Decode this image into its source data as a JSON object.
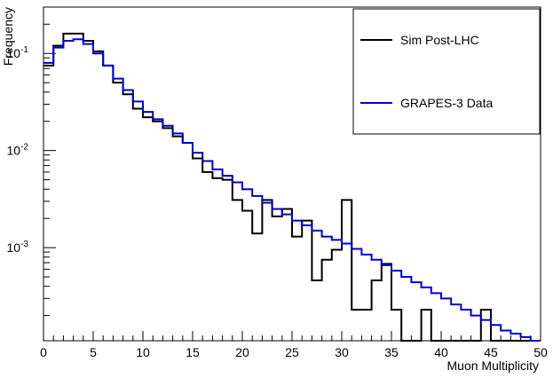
{
  "chart_data": {
    "type": "line",
    "style": "step-histogram",
    "xlabel": "Muon Multiplicity",
    "ylabel": "Frequency",
    "xlim": [
      0,
      50
    ],
    "ylim": [
      0.00011,
      0.3
    ],
    "yscale": "log",
    "bin_width": 1,
    "x_ticks": [
      0,
      5,
      10,
      15,
      20,
      25,
      30,
      35,
      40,
      45,
      50
    ],
    "y_ticks": [
      {
        "value": 0.1,
        "base": "10",
        "exp": "-1"
      },
      {
        "value": 0.01,
        "base": "10",
        "exp": "-2"
      },
      {
        "value": 0.001,
        "base": "10",
        "exp": "-3"
      }
    ],
    "grid": false,
    "legend": "top-right",
    "series": [
      {
        "name": "Sim Post-LHC",
        "color": "#000000",
        "bin_edges_start": 0,
        "values": [
          0.075,
          0.12,
          0.16,
          0.16,
          0.135,
          0.105,
          0.075,
          0.05,
          0.038,
          0.027,
          0.022,
          0.02,
          0.017,
          0.014,
          0.012,
          0.0083,
          0.006,
          0.0052,
          0.005,
          0.0031,
          0.0024,
          0.0014,
          0.0031,
          0.0021,
          0.0025,
          0.0013,
          0.0019,
          0.00046,
          0.00075,
          0.00095,
          0.0031,
          0.00023,
          0.00023,
          0.00046,
          0.00068,
          0.00023,
          0.0,
          0.0,
          0.00023,
          0.0,
          0.0,
          0.0,
          0.0,
          0.0,
          0.00023,
          0.0,
          0.0,
          0.0,
          0.0,
          0.0
        ]
      },
      {
        "name": "GRAPES-3 Data",
        "color": "#0000cc",
        "bin_edges_start": 0,
        "values": [
          0.08,
          0.115,
          0.135,
          0.14,
          0.125,
          0.1,
          0.075,
          0.055,
          0.042,
          0.032,
          0.025,
          0.021,
          0.018,
          0.015,
          0.012,
          0.0095,
          0.0078,
          0.0064,
          0.0055,
          0.0047,
          0.004,
          0.0034,
          0.0029,
          0.0025,
          0.0022,
          0.0019,
          0.0017,
          0.0015,
          0.0013,
          0.0012,
          0.0011,
          0.00097,
          0.00085,
          0.00075,
          0.00066,
          0.00058,
          0.0005,
          0.00044,
          0.00039,
          0.00034,
          0.0003,
          0.00026,
          0.00023,
          0.0002,
          0.00018,
          0.00016,
          0.00014,
          0.00013,
          0.00012,
          0.00011
        ]
      }
    ]
  }
}
